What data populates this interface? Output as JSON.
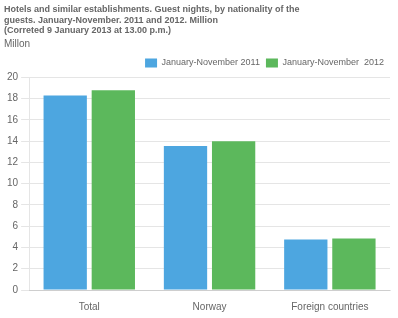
{
  "chart_data": {
    "type": "bar",
    "title": "Hotels and similar establishments. Guest nights, by nationality of the\nguests. January-November. 2011 and 2012. Million\n(Correted 9 January 2013 at 13.00 p.m.)",
    "ylabel": "Millon",
    "categories": [
      "Total",
      "Norway",
      "Foreign countries"
    ],
    "series": [
      {
        "name": "January-November 2011",
        "color": "#4da6e0",
        "values": [
          18.3,
          13.55,
          4.75
        ]
      },
      {
        "name": "January-November  2012",
        "color": "#5cb85c",
        "values": [
          18.8,
          14.0,
          4.85
        ]
      }
    ],
    "ylim": [
      0,
      20
    ],
    "yticks": [
      0,
      2,
      4,
      6,
      8,
      10,
      12,
      14,
      16,
      18,
      20
    ],
    "grid": true,
    "legend": "upper right"
  }
}
